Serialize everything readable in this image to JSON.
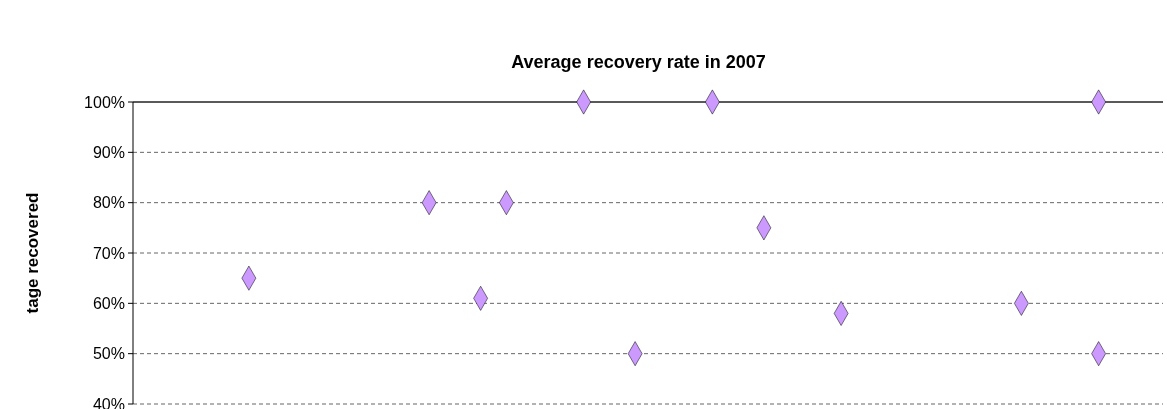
{
  "chart_data": {
    "type": "scatter",
    "title": "Average recovery rate in 2007",
    "ylabel": "tage recovered",
    "categories": [
      null,
      null,
      null,
      null,
      null,
      null,
      null,
      null,
      null,
      null,
      null,
      null,
      null,
      null,
      null,
      null,
      null,
      null,
      null,
      null,
      null,
      null,
      null,
      null,
      null,
      null,
      null,
      null,
      null,
      null,
      null,
      null,
      null,
      null,
      null,
      null,
      null,
      null,
      null,
      null
    ],
    "series": [
      {
        "color": "#cc99ff",
        "values": [
          null,
          null,
          null,
          null,
          65,
          null,
          null,
          null,
          null,
          null,
          null,
          80,
          null,
          61,
          80,
          null,
          null,
          100,
          null,
          50,
          null,
          null,
          100,
          null,
          75,
          null,
          null,
          58,
          null,
          null,
          null,
          null,
          null,
          null,
          60,
          null,
          null,
          100,
          null,
          null
        ]
      },
      {
        "color": "#cc99ff",
        "values": [
          null,
          null,
          null,
          null,
          null,
          null,
          null,
          null,
          null,
          null,
          null,
          null,
          null,
          null,
          null,
          null,
          null,
          null,
          null,
          null,
          null,
          null,
          null,
          null,
          null,
          null,
          null,
          null,
          null,
          null,
          null,
          null,
          null,
          null,
          null,
          null,
          null,
          50,
          null,
          null
        ]
      }
    ],
    "ylim": [
      40,
      100
    ],
    "yticks": [
      {
        "value": 40,
        "label": "40%"
      },
      {
        "value": 50,
        "label": "50%"
      },
      {
        "value": 60,
        "label": "60%"
      },
      {
        "value": 70,
        "label": "70%"
      },
      {
        "value": 80,
        "label": "80%"
      },
      {
        "value": 90,
        "label": "90%"
      },
      {
        "value": 100,
        "label": "100%"
      }
    ],
    "grid": "y",
    "marker": "diamond",
    "tick_labels": "y"
  }
}
